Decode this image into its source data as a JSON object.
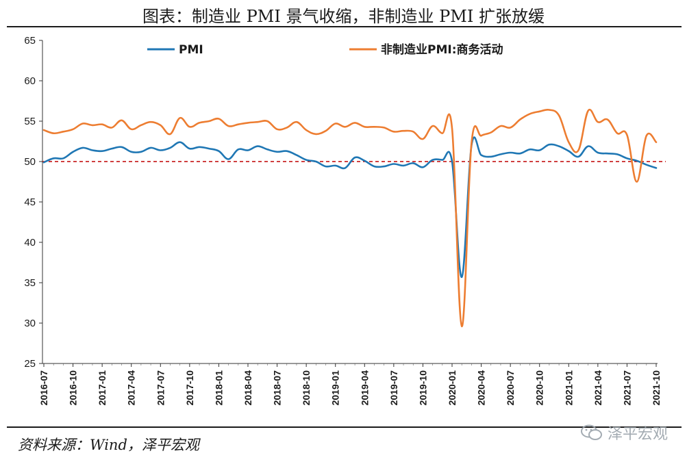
{
  "title": "图表：制造业 PMI 景气收缩，非制造业 PMI 扩张放缓",
  "source": "资料来源：Wind，泽平宏观",
  "watermark": "泽平宏观",
  "chart_data": {
    "type": "line",
    "ylim": [
      25,
      65
    ],
    "yticks": [
      25,
      30,
      35,
      40,
      45,
      50,
      55,
      60,
      65
    ],
    "x": [
      "2016-07",
      "2016-08",
      "2016-09",
      "2016-10",
      "2016-11",
      "2016-12",
      "2017-01",
      "2017-02",
      "2017-03",
      "2017-04",
      "2017-05",
      "2017-06",
      "2017-07",
      "2017-08",
      "2017-09",
      "2017-10",
      "2017-11",
      "2017-12",
      "2018-01",
      "2018-02",
      "2018-03",
      "2018-04",
      "2018-05",
      "2018-06",
      "2018-07",
      "2018-08",
      "2018-09",
      "2018-10",
      "2018-11",
      "2018-12",
      "2019-01",
      "2019-02",
      "2019-03",
      "2019-04",
      "2019-05",
      "2019-06",
      "2019-07",
      "2019-08",
      "2019-09",
      "2019-10",
      "2019-11",
      "2019-12",
      "2020-01",
      "2020-02",
      "2020-03",
      "2020-04",
      "2020-05",
      "2020-06",
      "2020-07",
      "2020-08",
      "2020-09",
      "2020-10",
      "2020-11",
      "2020-12",
      "2021-01",
      "2021-02",
      "2021-03",
      "2021-04",
      "2021-05",
      "2021-06",
      "2021-07",
      "2021-08",
      "2021-09",
      "2021-10"
    ],
    "xtick_labels": [
      "2016-07",
      "2016-10",
      "2017-01",
      "2017-04",
      "2017-07",
      "2017-10",
      "2018-01",
      "2018-04",
      "2018-07",
      "2018-10",
      "2019-01",
      "2019-04",
      "2019-07",
      "2019-10",
      "2020-01",
      "2020-04",
      "2020-07",
      "2020-10",
      "2021-01",
      "2021-04",
      "2021-07",
      "2021-10"
    ],
    "series": [
      {
        "name": "PMI",
        "color": "#1f77b4",
        "values": [
          49.9,
          50.4,
          50.4,
          51.2,
          51.7,
          51.4,
          51.3,
          51.6,
          51.8,
          51.2,
          51.2,
          51.7,
          51.4,
          51.7,
          52.4,
          51.6,
          51.8,
          51.6,
          51.3,
          50.3,
          51.5,
          51.4,
          51.9,
          51.5,
          51.2,
          51.3,
          50.8,
          50.2,
          50.0,
          49.4,
          49.5,
          49.2,
          50.5,
          50.1,
          49.4,
          49.4,
          49.7,
          49.5,
          49.8,
          49.3,
          50.2,
          50.2,
          50.0,
          35.7,
          52.0,
          50.8,
          50.6,
          50.9,
          51.1,
          51.0,
          51.5,
          51.4,
          52.1,
          51.9,
          51.3,
          50.6,
          51.9,
          51.1,
          51.0,
          50.9,
          50.4,
          50.1,
          49.6,
          49.2
        ]
      },
      {
        "name": "非制造业PMI:商务活动",
        "color": "#ed7d31",
        "values": [
          53.9,
          53.5,
          53.7,
          54.0,
          54.7,
          54.5,
          54.6,
          54.2,
          55.1,
          54.0,
          54.5,
          54.9,
          54.5,
          53.4,
          55.4,
          54.3,
          54.8,
          55.0,
          55.3,
          54.4,
          54.6,
          54.8,
          54.9,
          55.0,
          54.0,
          54.2,
          54.9,
          53.9,
          53.4,
          53.8,
          54.7,
          54.3,
          54.8,
          54.3,
          54.3,
          54.2,
          53.7,
          53.8,
          53.7,
          52.8,
          54.4,
          53.5,
          54.1,
          29.6,
          52.3,
          53.2,
          53.6,
          54.4,
          54.2,
          55.2,
          55.9,
          56.2,
          56.4,
          55.7,
          52.4,
          51.4,
          56.3,
          54.9,
          55.2,
          53.5,
          53.3,
          47.5,
          53.2,
          52.4
        ]
      }
    ],
    "reference_line": {
      "y": 50,
      "color": "#c00000",
      "style": "dashed"
    },
    "legend_placement": "top",
    "grid": false
  }
}
